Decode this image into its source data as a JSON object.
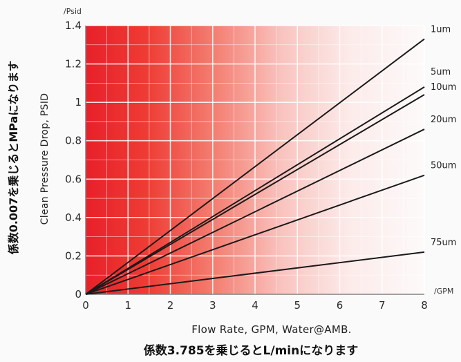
{
  "chart_data": {
    "type": "line",
    "ylabel": "Clean Pressure Drop, PSID",
    "xlabel": "Flow Rate, GPM, Water@AMB.",
    "y_unit": "/Psid",
    "x_unit": "/GPM",
    "xlim": [
      0,
      8
    ],
    "ylim": [
      0,
      1.4
    ],
    "x_ticks": [
      "0",
      "1",
      "2",
      "3",
      "4",
      "5",
      "6",
      "7",
      "8"
    ],
    "y_ticks": [
      "0",
      "0.2",
      "0.4",
      "0.6",
      "0.8",
      "1",
      "1.2",
      "1.4"
    ],
    "grid": true,
    "legend": "labels at right end of each line",
    "background": "red-to-white horizontal gradient",
    "series": [
      {
        "name": "1um",
        "x": [
          0,
          8
        ],
        "y": [
          0,
          1.33
        ]
      },
      {
        "name": "5um",
        "x": [
          0,
          8
        ],
        "y": [
          0,
          1.08
        ]
      },
      {
        "name": "10um",
        "x": [
          0,
          8
        ],
        "y": [
          0,
          1.04
        ]
      },
      {
        "name": "20um",
        "x": [
          0,
          8
        ],
        "y": [
          0,
          0.86
        ]
      },
      {
        "name": "50um",
        "x": [
          0,
          8
        ],
        "y": [
          0,
          0.62
        ]
      },
      {
        "name": "75um",
        "x": [
          0,
          8
        ],
        "y": [
          0,
          0.22
        ]
      }
    ],
    "line_color": "#1a1a1a"
  },
  "notes": {
    "y_note": "係数0.007を乗じるとMPaになります",
    "x_note": "係数3.785を乗じるとL/minになります"
  }
}
